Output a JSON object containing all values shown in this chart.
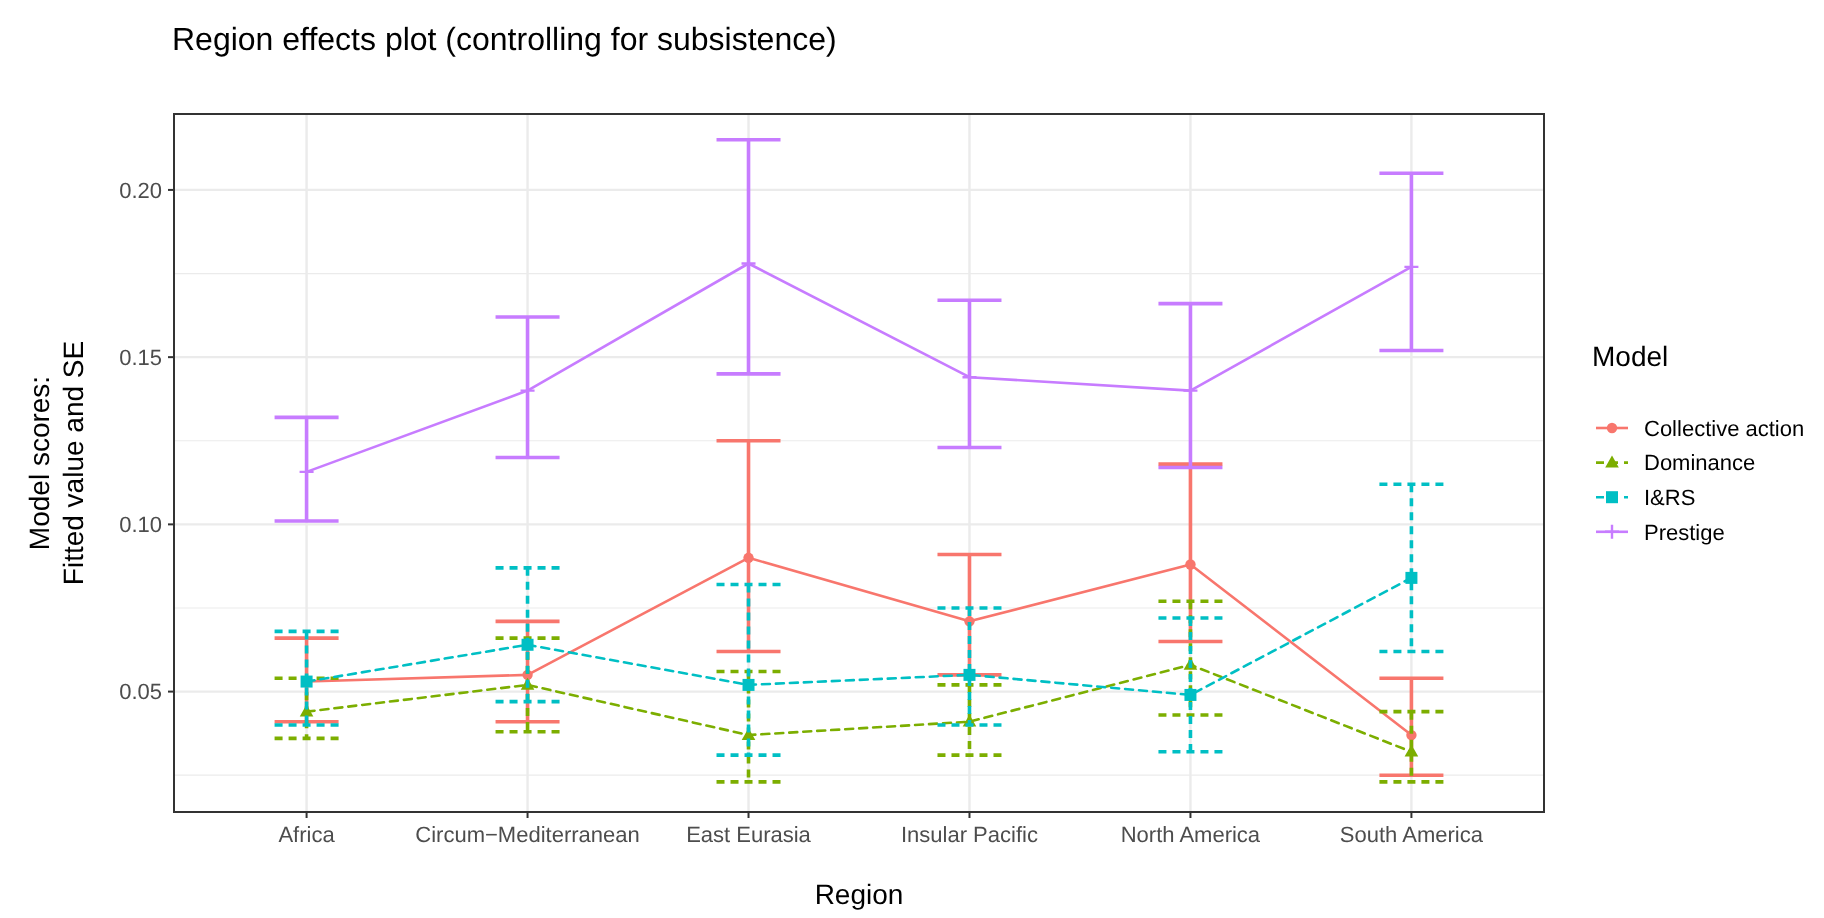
{
  "chart_data": {
    "type": "line",
    "title": "Region effects plot (controlling for subsistence)",
    "xlabel": "Region",
    "ylabel": "Model scores:\nFitted value and SE",
    "legend_title": "Model",
    "legend": "right",
    "grid": true,
    "categories": [
      "Africa",
      "Circum−Mediterranean",
      "East Eurasia",
      "Insular Pacific",
      "North America",
      "South America"
    ],
    "ylim": [
      0.014,
      0.2227
    ],
    "yticks": [
      {
        "value": 0.05,
        "label": "0.05"
      },
      {
        "value": 0.1,
        "label": "0.10"
      },
      {
        "value": 0.15,
        "label": "0.15"
      },
      {
        "value": 0.2,
        "label": "0.20"
      }
    ],
    "series": [
      {
        "name": "Collective action",
        "color": "#f8766d",
        "marker": "circle",
        "line_style": "solid",
        "values": [
          0.053,
          0.055,
          0.09,
          0.071,
          0.088,
          0.037
        ],
        "errors": [
          [
            0.041,
            0.066
          ],
          [
            0.041,
            0.071
          ],
          [
            0.062,
            0.125
          ],
          [
            0.055,
            0.091
          ],
          [
            0.065,
            0.118
          ],
          [
            0.025,
            0.054
          ]
        ]
      },
      {
        "name": "Dominance",
        "color": "#7cae00",
        "marker": "triangle",
        "line_style": "dashed",
        "values": [
          0.044,
          0.052,
          0.037,
          0.041,
          0.058,
          0.032
        ],
        "errors": [
          [
            0.036,
            0.054
          ],
          [
            0.038,
            0.066
          ],
          [
            0.023,
            0.056
          ],
          [
            0.031,
            0.052
          ],
          [
            0.043,
            0.077
          ],
          [
            0.023,
            0.044
          ]
        ]
      },
      {
        "name": "I&RS",
        "color": "#00bfc4",
        "marker": "square",
        "line_style": "dashed",
        "values": [
          0.053,
          0.064,
          0.052,
          0.055,
          0.049,
          0.084
        ],
        "errors": [
          [
            0.04,
            0.068
          ],
          [
            0.047,
            0.087
          ],
          [
            0.031,
            0.082
          ],
          [
            0.04,
            0.075
          ],
          [
            0.032,
            0.072
          ],
          [
            0.062,
            0.112
          ]
        ]
      },
      {
        "name": "Prestige",
        "color": "#c77cff",
        "marker": "cross",
        "line_style": "solid",
        "values": [
          0.1157,
          0.14,
          0.178,
          0.144,
          0.14,
          0.177
        ],
        "errors": [
          [
            0.101,
            0.132
          ],
          [
            0.12,
            0.162
          ],
          [
            0.145,
            0.215
          ],
          [
            0.123,
            0.167
          ],
          [
            0.117,
            0.166
          ],
          [
            0.152,
            0.205
          ]
        ]
      }
    ]
  }
}
